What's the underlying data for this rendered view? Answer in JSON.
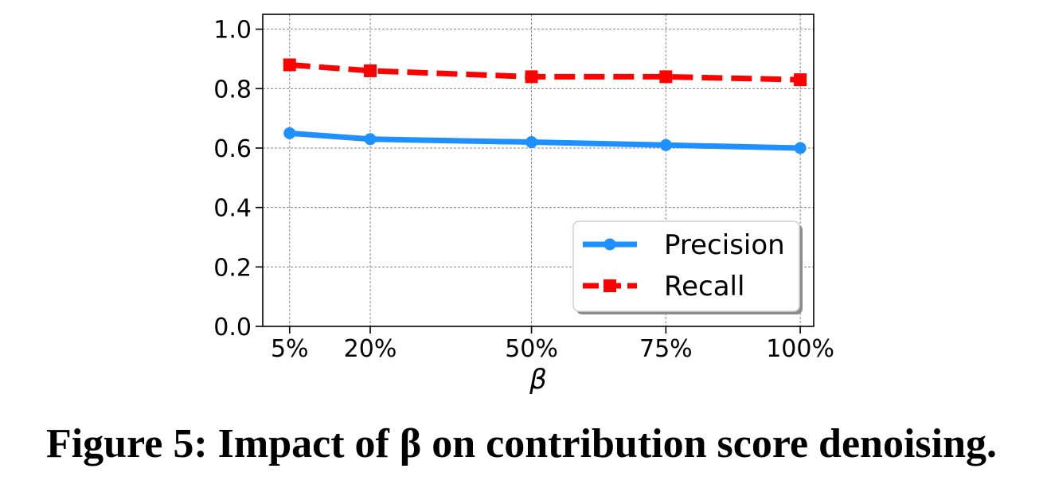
{
  "chart_data": {
    "type": "line",
    "categories": [
      "5%",
      "20%",
      "50%",
      "75%",
      "100%"
    ],
    "x": [
      5,
      20,
      50,
      75,
      100
    ],
    "xlabel": "β",
    "ylabel": "",
    "ylim": [
      0.0,
      1.05
    ],
    "yticks": [
      0.0,
      0.2,
      0.4,
      0.6,
      0.8,
      1.0
    ],
    "ytick_labels": [
      "0.0",
      "0.2",
      "0.4",
      "0.6",
      "0.8",
      "1.0"
    ],
    "grid": true,
    "legend_position": "bottom-right",
    "series": [
      {
        "name": "Precision",
        "values": [
          0.65,
          0.63,
          0.62,
          0.61,
          0.6
        ],
        "color": "#1E90FF",
        "marker": "circle",
        "linestyle": "solid"
      },
      {
        "name": "Recall",
        "values": [
          0.88,
          0.86,
          0.84,
          0.84,
          0.83
        ],
        "color": "#FF0000",
        "marker": "square",
        "linestyle": "dashed"
      }
    ]
  },
  "caption": "Figure 5: Impact of β on contribution score denoising."
}
